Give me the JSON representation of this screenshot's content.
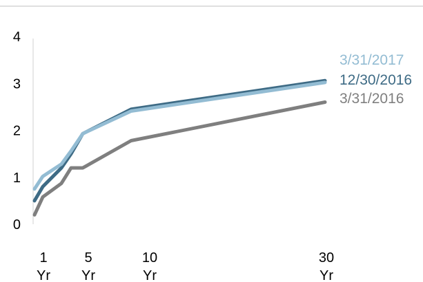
{
  "chart_data": {
    "type": "line",
    "title": "",
    "xlabel": "",
    "ylabel": "",
    "ylim": [
      0,
      4
    ],
    "grid": false,
    "legend_placement": "right",
    "y_ticks": [
      "0",
      "1",
      "2",
      "3",
      "4"
    ],
    "x_ticks": [
      {
        "x": 1,
        "top": "1",
        "bottom": "Yr"
      },
      {
        "x": 5,
        "top": "5",
        "bottom": "Yr"
      },
      {
        "x": 10,
        "top": "10",
        "bottom": "Yr"
      },
      {
        "x": 30,
        "top": "30",
        "bottom": "Yr"
      }
    ],
    "series": [
      {
        "name": "3/31/2016",
        "color": "#7f7f7f",
        "x": [
          0.25,
          0.5,
          2,
          3,
          5,
          10,
          30
        ],
        "y": [
          0.2,
          0.58,
          0.87,
          1.2,
          1.2,
          1.78,
          2.6
        ]
      },
      {
        "name": "12/30/2016",
        "color": "#3e6b85",
        "x": [
          0.25,
          0.5,
          2,
          3,
          5,
          10,
          30
        ],
        "y": [
          0.5,
          0.8,
          1.2,
          1.5,
          1.93,
          2.45,
          3.06
        ]
      },
      {
        "name": "3/31/2017",
        "color": "#93bcd3",
        "x": [
          0.25,
          0.5,
          2,
          3,
          5,
          10,
          30
        ],
        "y": [
          0.75,
          1.02,
          1.28,
          1.56,
          1.93,
          2.41,
          3.02
        ]
      }
    ]
  }
}
